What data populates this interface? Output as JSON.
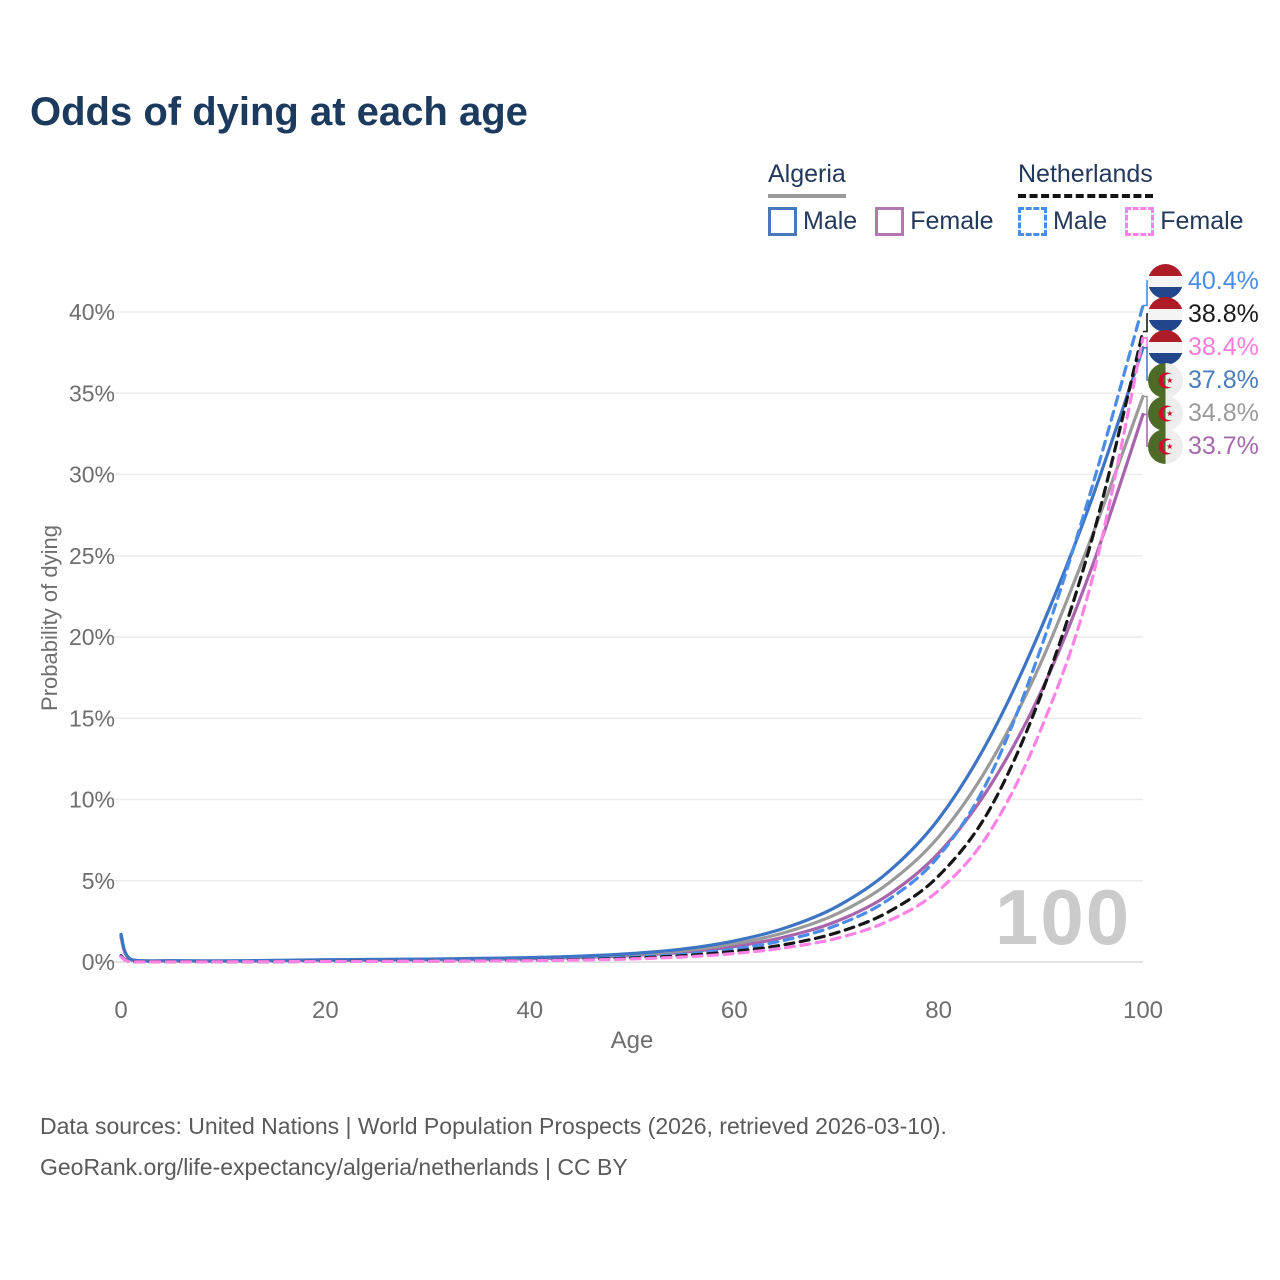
{
  "title": "Odds of dying at each age",
  "watermark": "100",
  "legend": {
    "groups": [
      {
        "label": "Algeria",
        "underline": "solid",
        "underline_color": "#9a9a9a",
        "items": [
          {
            "label": "Male",
            "color": "#4878ba",
            "dashed": false
          },
          {
            "label": "Female",
            "color": "#b276b2",
            "dashed": false
          }
        ]
      },
      {
        "label": "Netherlands",
        "underline": "dashed",
        "underline_color": "#141414",
        "items": [
          {
            "label": "Male",
            "color": "#4a8ce8",
            "dashed": true
          },
          {
            "label": "Female",
            "color": "#ff82e5",
            "dashed": true
          }
        ]
      }
    ]
  },
  "chart_data": {
    "type": "line",
    "title": "Odds of dying at each age",
    "xlabel": "Age",
    "ylabel": "Probability of dying",
    "xlim": [
      0,
      100
    ],
    "ylim": [
      0,
      42
    ],
    "xticks": [
      0,
      20,
      40,
      60,
      80,
      100
    ],
    "yticks": [
      0,
      5,
      10,
      15,
      20,
      25,
      30,
      35,
      40
    ],
    "ytick_suffix": "%",
    "grid": "horizontal",
    "x": [
      0,
      1,
      5,
      10,
      15,
      20,
      25,
      30,
      35,
      40,
      45,
      50,
      55,
      60,
      65,
      70,
      75,
      80,
      85,
      90,
      95,
      100
    ],
    "series": [
      {
        "name": "Algeria female",
        "color": "#a864ab",
        "dash": "solid",
        "values": [
          1.5,
          0.13,
          0.07,
          0.05,
          0.07,
          0.09,
          0.11,
          0.13,
          0.16,
          0.2,
          0.28,
          0.4,
          0.6,
          0.95,
          1.55,
          2.5,
          4.1,
          6.7,
          10.8,
          16.6,
          24.3,
          33.7
        ]
      },
      {
        "name": "Algeria both sexes",
        "color": "#9a9a9a",
        "dash": "solid",
        "values": [
          1.6,
          0.14,
          0.07,
          0.06,
          0.08,
          0.11,
          0.13,
          0.15,
          0.19,
          0.24,
          0.32,
          0.46,
          0.7,
          1.12,
          1.82,
          2.95,
          4.8,
          7.7,
          12.2,
          18.4,
          26.2,
          34.8
        ]
      },
      {
        "name": "Algeria male",
        "color": "#3d74c4",
        "dash": "solid",
        "values": [
          1.7,
          0.15,
          0.08,
          0.07,
          0.1,
          0.14,
          0.16,
          0.18,
          0.22,
          0.27,
          0.36,
          0.52,
          0.8,
          1.3,
          2.1,
          3.4,
          5.5,
          8.8,
          13.8,
          20.5,
          28.5,
          37.8
        ]
      },
      {
        "name": "Netherlands male",
        "color": "#4a8ce8",
        "dash": "dashed",
        "values": [
          0.4,
          0.03,
          0.02,
          0.02,
          0.03,
          0.05,
          0.06,
          0.07,
          0.09,
          0.12,
          0.18,
          0.29,
          0.48,
          0.8,
          1.35,
          2.25,
          3.8,
          6.5,
          11.4,
          19.3,
          29.2,
          40.4
        ]
      },
      {
        "name": "Netherlands both sexes",
        "color": "#161616",
        "dash": "dashed",
        "values": [
          0.36,
          0.03,
          0.02,
          0.01,
          0.02,
          0.04,
          0.05,
          0.06,
          0.07,
          0.1,
          0.15,
          0.24,
          0.39,
          0.65,
          1.08,
          1.8,
          3.05,
          5.3,
          9.4,
          16.4,
          26.0,
          38.8
        ]
      },
      {
        "name": "Netherlands female",
        "color": "#ff82e5",
        "dash": "dashed",
        "values": [
          0.32,
          0.02,
          0.01,
          0.01,
          0.02,
          0.03,
          0.04,
          0.05,
          0.06,
          0.08,
          0.12,
          0.19,
          0.31,
          0.52,
          0.88,
          1.45,
          2.5,
          4.4,
          8.0,
          14.3,
          23.5,
          38.4
        ]
      }
    ],
    "end_labels": [
      {
        "text": "40.4%",
        "color": "#4a8ce8",
        "flag": "netherlands",
        "series": "Netherlands male"
      },
      {
        "text": "38.8%",
        "color": "#1a1a1a",
        "flag": "netherlands",
        "series": "Netherlands both sexes"
      },
      {
        "text": "38.4%",
        "color": "#ff7ad9",
        "flag": "netherlands",
        "series": "Netherlands female"
      },
      {
        "text": "37.8%",
        "color": "#4a7ebb",
        "flag": "algeria",
        "series": "Algeria male"
      },
      {
        "text": "34.8%",
        "color": "#9b9b9b",
        "flag": "algeria",
        "series": "Algeria both sexes"
      },
      {
        "text": "33.7%",
        "color": "#a66aad",
        "flag": "algeria",
        "series": "Algeria female"
      }
    ],
    "legend_position": "top-right"
  },
  "footer": {
    "line1": "Data sources: United Nations | World Population Prospects (2026, retrieved 2026-03-10).",
    "line2": "GeoRank.org/life-expectancy/algeria/netherlands | CC BY"
  }
}
